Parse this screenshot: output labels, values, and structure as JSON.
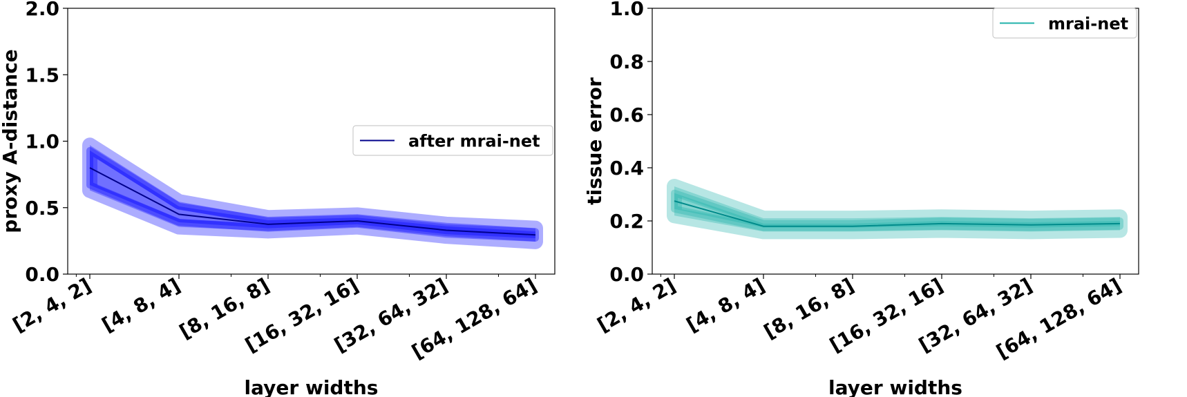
{
  "chart_data": [
    {
      "type": "line",
      "x": [
        "[2, 4, 2]",
        "[4, 8, 4]",
        "[8, 16, 8]",
        "[16, 32, 16]",
        "[32, 64, 32]",
        "[64, 128, 64]"
      ],
      "xlabel": "layer widths",
      "ylabel": "proxy A-distance",
      "ylim": [
        0.0,
        2.0
      ],
      "yticks": [
        "0.0",
        "0.5",
        "1.0",
        "1.5",
        "2.0"
      ],
      "legend_position": "center-right",
      "color": "#0000ff",
      "line_color": "#00008b",
      "series": [
        {
          "name": "after mrai-net",
          "values": [
            0.8,
            0.45,
            0.375,
            0.4,
            0.33,
            0.295
          ],
          "inner_band": [
            [
              0.67,
              0.93
            ],
            [
              0.39,
              0.51
            ],
            [
              0.345,
              0.405
            ],
            [
              0.375,
              0.425
            ],
            [
              0.3,
              0.36
            ],
            [
              0.27,
              0.32
            ]
          ],
          "outer_band": [
            [
              0.63,
              0.97
            ],
            [
              0.355,
              0.545
            ],
            [
              0.325,
              0.425
            ],
            [
              0.355,
              0.445
            ],
            [
              0.285,
              0.375
            ],
            [
              0.245,
              0.345
            ]
          ]
        }
      ]
    },
    {
      "type": "line",
      "x": [
        "[2, 4, 2]",
        "[4, 8, 4]",
        "[8, 16, 8]",
        "[16, 32, 16]",
        "[32, 64, 32]",
        "[64, 128, 64]"
      ],
      "xlabel": "layer widths",
      "ylabel": "tissue error",
      "ylim": [
        0.0,
        1.0
      ],
      "yticks": [
        "0.0",
        "0.2",
        "0.4",
        "0.6",
        "0.8",
        "1.0"
      ],
      "legend_position": "top-right",
      "color": "#20b2aa",
      "line_color": "#008b8b",
      "series": [
        {
          "name": "mrai-net",
          "values": [
            0.275,
            0.18,
            0.18,
            0.19,
            0.185,
            0.19
          ],
          "inner_band": [
            [
              0.245,
              0.305
            ],
            [
              0.175,
              0.19
            ],
            [
              0.175,
              0.19
            ],
            [
              0.18,
              0.2
            ],
            [
              0.175,
              0.195
            ],
            [
              0.18,
              0.2
            ]
          ],
          "outer_band": [
            [
              0.22,
              0.33
            ],
            [
              0.16,
              0.21
            ],
            [
              0.16,
              0.21
            ],
            [
              0.165,
              0.215
            ],
            [
              0.16,
              0.21
            ],
            [
              0.165,
              0.215
            ]
          ]
        }
      ]
    }
  ]
}
